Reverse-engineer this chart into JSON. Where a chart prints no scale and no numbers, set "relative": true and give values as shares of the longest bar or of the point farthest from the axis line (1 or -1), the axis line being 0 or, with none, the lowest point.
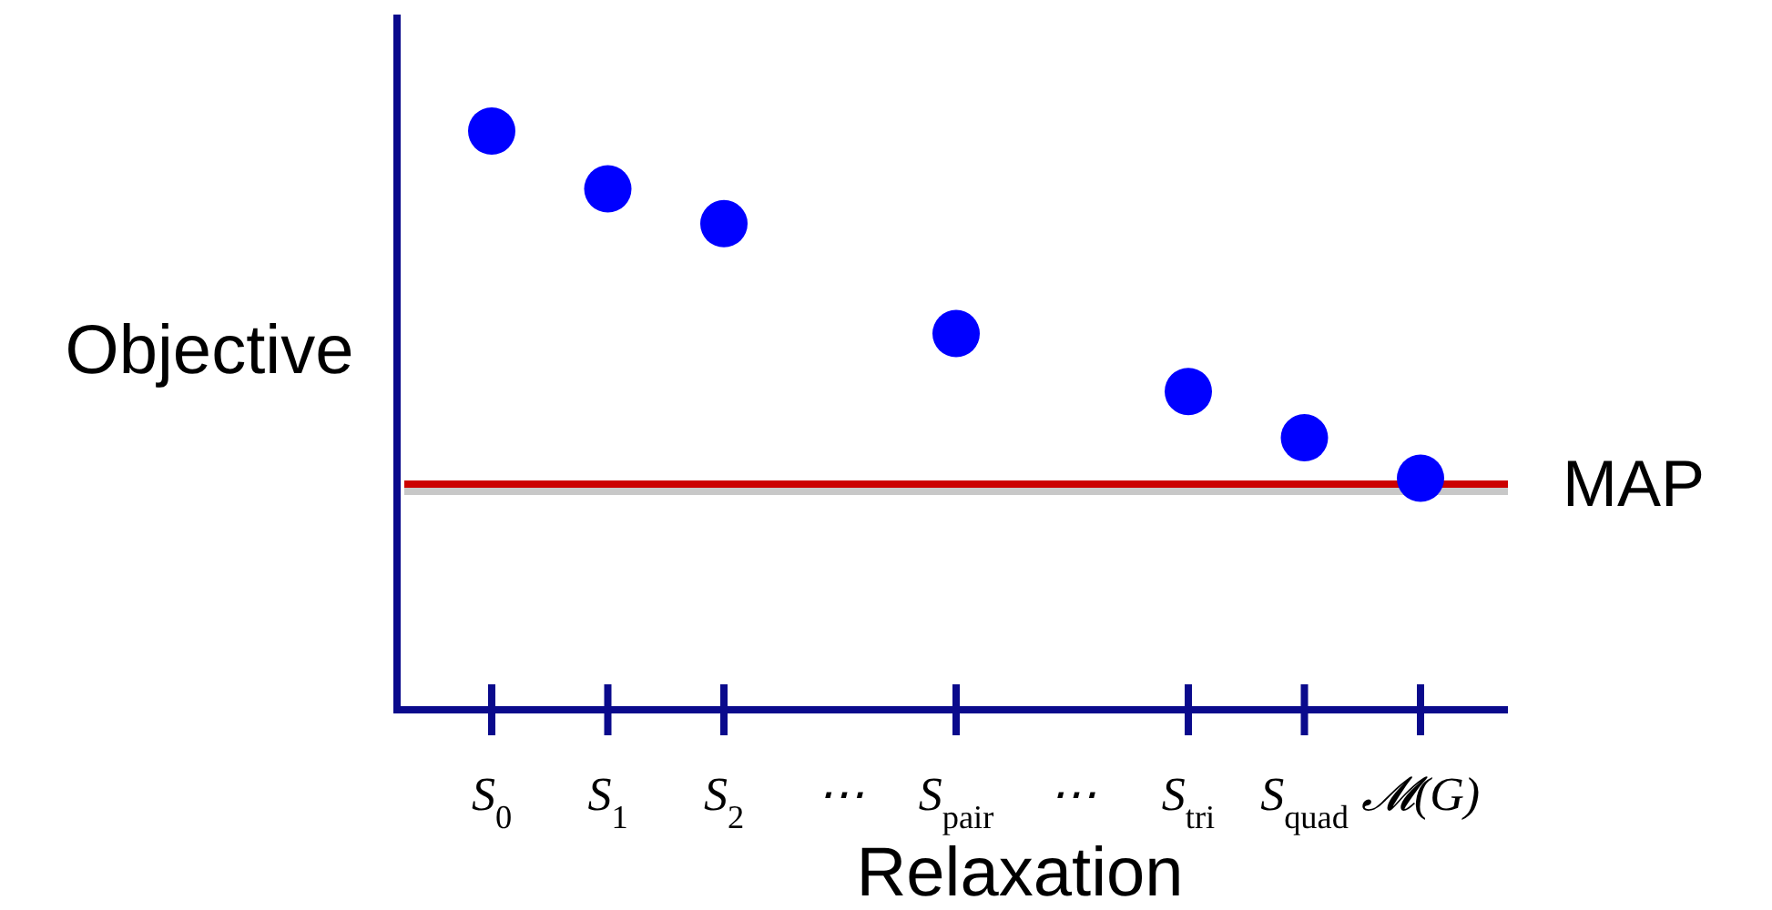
{
  "chart_data": {
    "type": "scatter",
    "xlabel": "Relaxation",
    "ylabel": "Objective",
    "relative": true,
    "marker": "circle",
    "categories": [
      "S$_{0}$",
      "S$_{1}$",
      "S$_{2}$",
      "⋯",
      "S$_{pair}$",
      "⋯",
      "S$_{tri}$",
      "S$_{quad}$",
      "𝓜(G)"
    ],
    "series": [
      {
        "color": "#0000ff",
        "values": [
          1,
          0.9,
          0.84,
          null,
          0.65,
          null,
          0.55,
          0.47,
          0.4
        ]
      }
    ],
    "ref_lines": [
      {
        "axis": "y",
        "value": 0.39,
        "label": "MAP",
        "color": "#cc0000",
        "line_style": "solid"
      }
    ]
  }
}
